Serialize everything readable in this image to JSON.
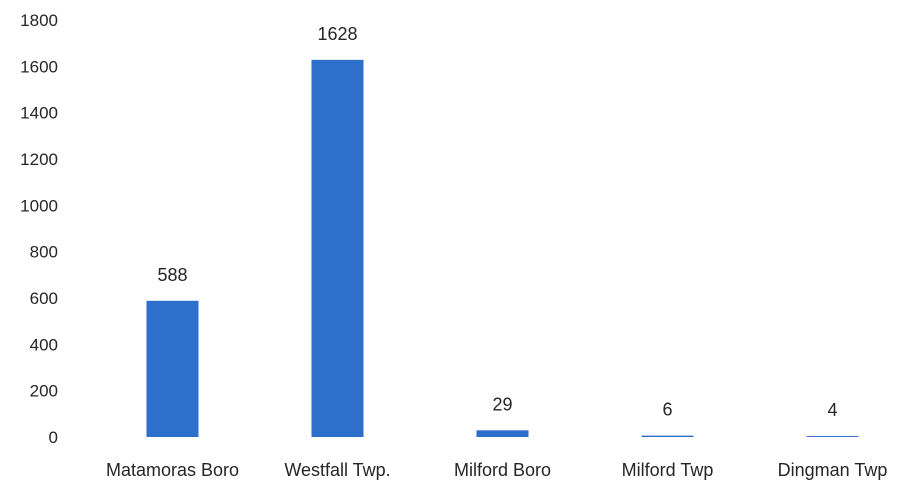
{
  "chart_data": {
    "type": "bar",
    "title": "",
    "xlabel": "",
    "ylabel": "",
    "categories": [
      "Matamoras Boro",
      "Westfall Twp.",
      "Milford Boro",
      "Milford Twp",
      "Dingman Twp"
    ],
    "values": [
      588,
      1628,
      29,
      6,
      4
    ],
    "data_labels": [
      "588",
      "1628",
      "29",
      "6",
      "4"
    ],
    "ylim": [
      0,
      1800
    ],
    "yticks": [
      0,
      200,
      400,
      600,
      800,
      1000,
      1200,
      1400,
      1600,
      1800
    ],
    "ytick_labels": [
      "0",
      "200",
      "400",
      "600",
      "800",
      "1000",
      "1200",
      "1400",
      "1600",
      "1800"
    ],
    "grid": false,
    "legend": "none",
    "bar_color": "#2E6FCC"
  }
}
